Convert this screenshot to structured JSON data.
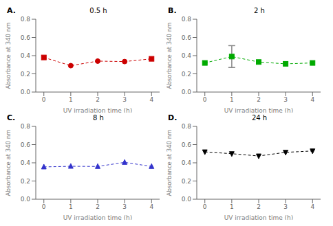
{
  "chart_data": [
    {
      "type": "line",
      "title": "0.5 h",
      "annotations": [
        "A."
      ],
      "xlabel": "UV irradiation time (h)",
      "ylabel": "Absorbance at 340 nm",
      "x": [
        0,
        1,
        2,
        3,
        4
      ],
      "values": [
        0.38,
        0.29,
        0.34,
        0.335,
        0.365
      ],
      "yerr": [
        null,
        null,
        null,
        null,
        null
      ],
      "color": "#cc0000",
      "markers": [
        "square",
        "circle",
        "circle",
        "circle",
        "square"
      ],
      "line_style": "dashed",
      "xlim": [
        -0.3,
        4.3
      ],
      "xticks": [
        0,
        1,
        2,
        3,
        4
      ],
      "ylim": [
        0.0,
        0.8
      ],
      "yticks": [
        {
          "value": 0.0,
          "label": "0.0"
        },
        0.2,
        0.4,
        0.6,
        0.8
      ],
      "grid": false
    },
    {
      "type": "line",
      "title": "2 h",
      "annotations": [
        "B."
      ],
      "xlabel": "UV irradiation time (h)",
      "ylabel": "Absorbance at 340 nm",
      "x": [
        0,
        1,
        2,
        3,
        4
      ],
      "values": [
        0.32,
        0.39,
        0.33,
        0.31,
        0.32
      ],
      "yerr": [
        null,
        0.12,
        null,
        null,
        null
      ],
      "color": "#00aa00",
      "markers": [
        "square",
        "square",
        "square",
        "square",
        "square"
      ],
      "line_style": "dashed",
      "xlim": [
        -0.3,
        4.3
      ],
      "xticks": [
        0,
        1,
        2,
        3,
        4
      ],
      "ylim": [
        0.0,
        0.8
      ],
      "yticks": [
        {
          "value": 0.0,
          "label": "0.0"
        },
        0.2,
        0.4,
        0.6,
        0.8
      ],
      "grid": false
    },
    {
      "type": "line",
      "title": "8 h",
      "annotations": [
        "C."
      ],
      "xlabel": "UV irradiation time (h)",
      "ylabel": "Absorbance at 340 nm",
      "x": [
        0,
        1,
        2,
        3,
        4
      ],
      "values": [
        0.355,
        0.362,
        0.36,
        0.405,
        0.36
      ],
      "yerr": [
        null,
        null,
        null,
        null,
        null
      ],
      "color": "#3333cc",
      "markers": [
        "triangle-up",
        "triangle-up",
        "triangle-up",
        "triangle-up",
        "triangle-up"
      ],
      "line_style": "dashed",
      "xlim": [
        -0.3,
        4.3
      ],
      "xticks": [
        0,
        1,
        2,
        3,
        4
      ],
      "ylim": [
        0.0,
        0.8
      ],
      "yticks": [
        {
          "value": 0.0,
          "label": "0.0"
        },
        0.2,
        0.4,
        0.6,
        0.8
      ],
      "grid": false
    },
    {
      "type": "line",
      "title": "24 h",
      "annotations": [
        "D."
      ],
      "xlabel": "UV irradiation time (h)",
      "ylabel": "Absorbance at 340 nm",
      "x": [
        0,
        1,
        2,
        3,
        4
      ],
      "values": [
        0.52,
        0.5,
        0.475,
        0.515,
        0.53
      ],
      "yerr": [
        null,
        null,
        null,
        null,
        null
      ],
      "color": "#000000",
      "markers": [
        "triangle-down",
        "triangle-down",
        "triangle-down",
        "triangle-down",
        "triangle-down"
      ],
      "line_style": "dashed",
      "xlim": [
        -0.3,
        4.3
      ],
      "xticks": [
        0,
        1,
        2,
        3,
        4
      ],
      "ylim": [
        0.0,
        0.8
      ],
      "yticks": [
        {
          "value": 0.0,
          "label": "0.0"
        },
        0.2,
        0.4,
        0.6,
        0.8
      ],
      "grid": false
    }
  ]
}
